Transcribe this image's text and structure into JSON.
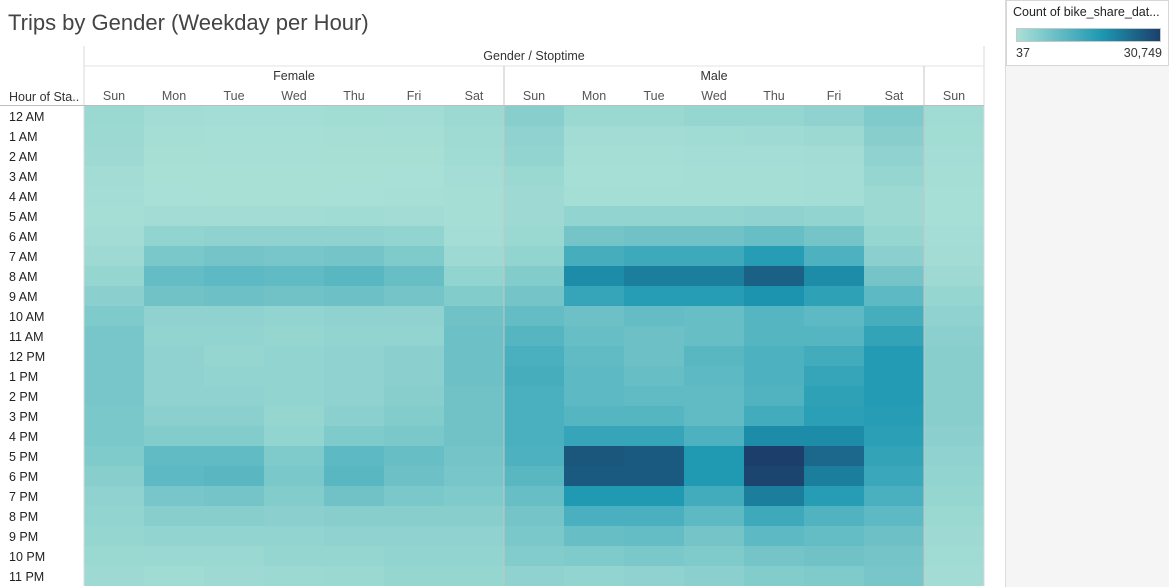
{
  "title": "Trips by Gender (Weekday per Hour)",
  "legend": {
    "title": "Count of bike_share_dat...",
    "min_label": "37",
    "max_label": "30,749",
    "color_low": "#a9e0d6",
    "color_mid": "#1c97b2",
    "color_high": "#1b3f6a"
  },
  "chart_data": {
    "type": "heatmap",
    "title": "Trips by Gender (Weekday per Hour)",
    "column_header": "Gender / Stoptime",
    "row_header": "Hour of Sta..",
    "value_range": [
      37,
      30749
    ],
    "groups": [
      {
        "name": "Female",
        "days": [
          "Sun",
          "Mon",
          "Tue",
          "Wed",
          "Thu",
          "Fri",
          "Sat"
        ]
      },
      {
        "name": "Male",
        "days": [
          "Sun",
          "Mon",
          "Tue",
          "Wed",
          "Thu",
          "Fri",
          "Sat"
        ]
      },
      {
        "name": "",
        "days": [
          "Sun"
        ]
      }
    ],
    "rows": [
      "12 AM",
      "1 AM",
      "2 AM",
      "3 AM",
      "4 AM",
      "5 AM",
      "6 AM",
      "7 AM",
      "8 AM",
      "9 AM",
      "10 AM",
      "11 AM",
      "12 PM",
      "1 PM",
      "2 PM",
      "3 PM",
      "4 PM",
      "5 PM",
      "6 PM",
      "7 PM",
      "8 PM",
      "9 PM",
      "10 PM",
      "11 PM"
    ],
    "columns": [
      "Female Sun",
      "Female Mon",
      "Female Tue",
      "Female Wed",
      "Female Thu",
      "Female Fri",
      "Female Sat",
      "Male Sun",
      "Male Mon",
      "Male Tue",
      "Male Wed",
      "Male Thu",
      "Male Fri",
      "Male Sat",
      "Sun"
    ],
    "values": [
      [
        2000,
        1000,
        800,
        800,
        900,
        1000,
        1800,
        4500,
        2000,
        2000,
        2500,
        2500,
        3500,
        5500,
        1200
      ],
      [
        1800,
        500,
        400,
        400,
        450,
        500,
        1400,
        3500,
        1000,
        1000,
        1200,
        1300,
        1800,
        4500,
        900
      ],
      [
        1500,
        300,
        250,
        250,
        300,
        350,
        1100,
        3000,
        600,
        600,
        700,
        800,
        1000,
        3500,
        700
      ],
      [
        1000,
        150,
        120,
        130,
        150,
        200,
        800,
        2000,
        400,
        400,
        500,
        500,
        700,
        2500,
        500
      ],
      [
        700,
        200,
        150,
        150,
        200,
        250,
        500,
        1500,
        500,
        500,
        600,
        600,
        800,
        1800,
        400
      ],
      [
        600,
        1000,
        1000,
        1000,
        1200,
        1000,
        500,
        1500,
        3000,
        3000,
        3000,
        3500,
        3000,
        1800,
        400
      ],
      [
        1000,
        3000,
        3500,
        3500,
        3500,
        3000,
        800,
        2000,
        7000,
        7500,
        7500,
        8500,
        7000,
        2500,
        700
      ],
      [
        1500,
        6000,
        7000,
        6500,
        7000,
        5500,
        1500,
        3000,
        13000,
        14000,
        14000,
        17000,
        12000,
        4000,
        1000
      ],
      [
        2500,
        9000,
        10000,
        9500,
        10500,
        8500,
        3000,
        5000,
        20000,
        22000,
        22000,
        26000,
        20000,
        7000,
        1500
      ],
      [
        4000,
        7500,
        8000,
        7500,
        8000,
        7000,
        5000,
        7000,
        15000,
        17000,
        17000,
        19000,
        16000,
        10000,
        2500
      ],
      [
        5500,
        3500,
        3500,
        3000,
        3500,
        3500,
        7500,
        9000,
        8000,
        9000,
        8500,
        11000,
        10000,
        13000,
        3500
      ],
      [
        6500,
        3000,
        3000,
        2500,
        3000,
        3000,
        8000,
        11000,
        8500,
        8000,
        8500,
        11000,
        11000,
        15500,
        4000
      ],
      [
        6500,
        3500,
        2500,
        3000,
        3500,
        4000,
        8000,
        12500,
        9500,
        8000,
        10500,
        12000,
        13500,
        17500,
        4500
      ],
      [
        6500,
        3500,
        3000,
        3000,
        3500,
        4000,
        8000,
        13000,
        10000,
        8500,
        10000,
        12000,
        15000,
        17500,
        4500
      ],
      [
        6500,
        3500,
        3500,
        3000,
        3500,
        4500,
        7500,
        12500,
        10000,
        9500,
        9500,
        11500,
        16000,
        17500,
        4500
      ],
      [
        6000,
        4000,
        4000,
        2500,
        4000,
        5000,
        7500,
        12500,
        11000,
        11000,
        9500,
        13500,
        16500,
        17000,
        4500
      ],
      [
        6000,
        5000,
        5000,
        3000,
        5500,
        6000,
        7500,
        12500,
        15000,
        15000,
        12000,
        20000,
        20000,
        16500,
        4000
      ],
      [
        5500,
        9500,
        9500,
        5500,
        10000,
        8500,
        7000,
        12000,
        27500,
        27000,
        18000,
        30749,
        25000,
        15500,
        3500
      ],
      [
        4500,
        10000,
        10500,
        6000,
        10500,
        8000,
        6500,
        10500,
        27000,
        27000,
        18000,
        30000,
        22000,
        14500,
        3000
      ],
      [
        3500,
        6500,
        7000,
        5000,
        7500,
        6000,
        5500,
        8500,
        18000,
        18000,
        13500,
        22000,
        17000,
        12500,
        2500
      ],
      [
        3000,
        4500,
        4500,
        4000,
        4500,
        4500,
        4500,
        7000,
        12500,
        12500,
        10000,
        14000,
        11500,
        10000,
        2000
      ],
      [
        2500,
        3000,
        3000,
        3000,
        3500,
        3500,
        3500,
        6000,
        8500,
        9000,
        7000,
        10000,
        9000,
        8000,
        1500
      ],
      [
        2000,
        2000,
        2000,
        2500,
        2500,
        3000,
        3000,
        5000,
        5500,
        6000,
        5500,
        7000,
        7500,
        7000,
        1200
      ],
      [
        1500,
        1200,
        1500,
        1800,
        2000,
        2500,
        2500,
        3500,
        3000,
        3500,
        4000,
        5000,
        5500,
        6500,
        1000
      ]
    ]
  }
}
